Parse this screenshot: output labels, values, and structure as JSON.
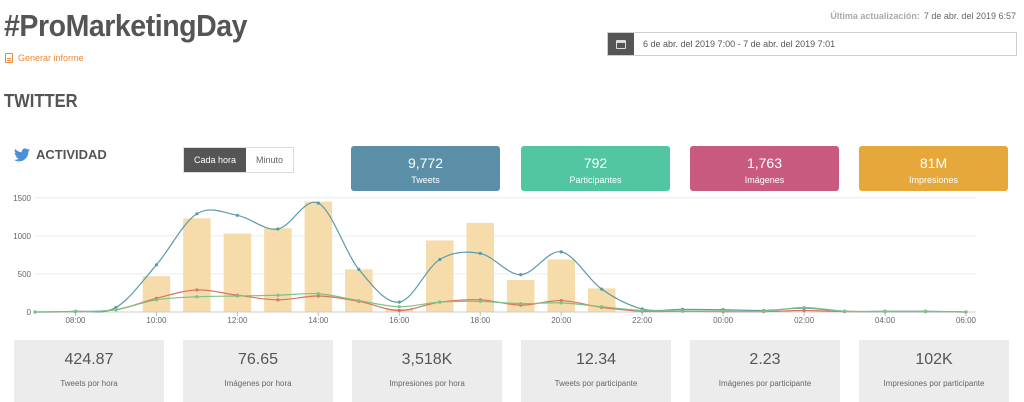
{
  "header": {
    "title": "#ProMarketingDay",
    "report_link": "Generar informe",
    "last_update_label": "Última actualización:",
    "last_update_value": "7 de abr. del 2019 6:57",
    "date_range": "6 de abr. del 2019 7:00 - 7 de abr. del 2019 7:01"
  },
  "section_title": "TWITTER",
  "activity": {
    "title": "ACTIVIDAD",
    "toggle": [
      "Cada hora",
      "Minuto"
    ],
    "active_toggle": "Cada hora"
  },
  "stats": [
    {
      "value": "9,772",
      "label": "Tweets",
      "color": "#5b8fa8"
    },
    {
      "value": "792",
      "label": "Participantes",
      "color": "#52c6a0"
    },
    {
      "value": "1,763",
      "label": "Imágenes",
      "color": "#c95a7f"
    },
    {
      "value": "81M",
      "label": "Impresiones",
      "color": "#e6a83a"
    }
  ],
  "metrics": [
    {
      "value": "424.87",
      "label": "Tweets por hora"
    },
    {
      "value": "76.65",
      "label": "Imágenes por hora"
    },
    {
      "value": "3,518K",
      "label": "Impresiones por hora"
    },
    {
      "value": "12.34",
      "label": "Tweets por participante"
    },
    {
      "value": "2.23",
      "label": "Imágenes por participante"
    },
    {
      "value": "102K",
      "label": "Impresiones por participante"
    }
  ],
  "chart_data": {
    "type": "bar",
    "x": [
      "07:00",
      "08:00",
      "09:00",
      "10:00",
      "11:00",
      "12:00",
      "13:00",
      "14:00",
      "15:00",
      "16:00",
      "17:00",
      "18:00",
      "19:00",
      "20:00",
      "21:00",
      "22:00",
      "23:00",
      "00:00",
      "01:00",
      "02:00",
      "03:00",
      "04:00",
      "05:00",
      "06:00"
    ],
    "x_tick_labels": [
      "08:00",
      "10:00",
      "12:00",
      "14:00",
      "16:00",
      "18:00",
      "20:00",
      "22:00",
      "00:00",
      "02:00",
      "04:00",
      "06:00"
    ],
    "y_ticks": [
      0,
      500,
      1000,
      1500
    ],
    "ylim": [
      0,
      1550
    ],
    "series": [
      {
        "type": "bar",
        "color": "#f5dcaa",
        "values": [
          0,
          0,
          0,
          470,
          1230,
          1030,
          1100,
          1450,
          560,
          40,
          940,
          1170,
          420,
          690,
          310,
          0,
          0,
          0,
          0,
          0,
          0,
          0,
          0,
          0
        ]
      },
      {
        "type": "line",
        "color": "#5b9aaa",
        "values": [
          0,
          10,
          60,
          620,
          1290,
          1270,
          1090,
          1430,
          560,
          130,
          690,
          770,
          490,
          790,
          300,
          40,
          35,
          30,
          20,
          50,
          10,
          10,
          10,
          0
        ]
      },
      {
        "type": "line",
        "color": "#d9745a",
        "values": [
          0,
          5,
          30,
          180,
          290,
          220,
          160,
          210,
          140,
          20,
          130,
          160,
          90,
          150,
          60,
          10,
          10,
          5,
          5,
          20,
          5,
          5,
          5,
          0
        ]
      },
      {
        "type": "line",
        "color": "#7cc28a",
        "values": [
          0,
          5,
          30,
          160,
          200,
          210,
          220,
          240,
          150,
          70,
          130,
          140,
          110,
          120,
          70,
          20,
          15,
          10,
          10,
          60,
          10,
          5,
          5,
          0
        ]
      }
    ]
  }
}
